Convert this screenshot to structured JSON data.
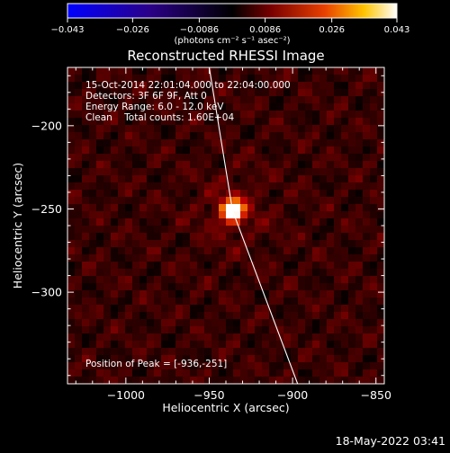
{
  "chart_data": {
    "type": "heatmap",
    "title": "Reconstructed RHESSI Image",
    "xlabel": "Heliocentric X (arcsec)",
    "ylabel": "Heliocentric Y (arcsec)",
    "xlim": [
      -1035,
      -845
    ],
    "ylim": [
      -355,
      -165
    ],
    "x_ticks": [
      -1000,
      -950,
      -900,
      -850
    ],
    "y_ticks": [
      -200,
      -250,
      -300
    ],
    "x_tick_labels": [
      "−1000",
      "−950",
      "−900",
      "−850"
    ],
    "y_tick_labels": [
      "−200",
      "−250",
      "−300"
    ],
    "colorbar": {
      "min": -0.043,
      "max": 0.043,
      "ticks": [
        -0.043,
        -0.026,
        -0.0086,
        0.0086,
        0.026,
        0.043
      ],
      "tick_labels": [
        "−0.043",
        "−0.026",
        "−0.0086",
        "0.0086",
        "0.026",
        "0.043"
      ],
      "units_label": "(photons cm⁻² s⁻¹ asec⁻²)"
    },
    "info_lines": [
      "15-Oct-2014 22:01:04.000 to 22:04:00.000",
      "Detectors: 3F 6F 9F, Att 0",
      "Energy Range: 6.0 - 12.0 keV",
      "Clean    Total counts: 1.60E+04"
    ],
    "peak_label": "Position of Peak = [-936,-251]",
    "peak": {
      "x": -936,
      "y": -251
    },
    "limb_line_points": [
      [
        -950,
        -165
      ],
      [
        -936,
        -251
      ],
      [
        -897,
        -355
      ]
    ],
    "colors": {
      "background": "#000000",
      "limb": "#ffffff",
      "colormap": "blue-black-red-yellow-white"
    }
  },
  "footer": {
    "timestamp": "18-May-2022 03:41"
  }
}
